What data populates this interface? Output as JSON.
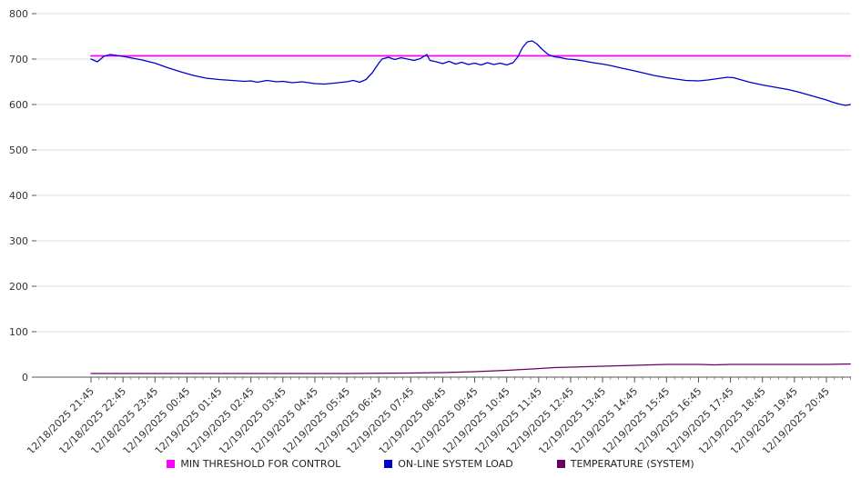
{
  "chart": {
    "background": "#ffffff",
    "axis_color": "#555555",
    "grid_color": "#dddddd",
    "text_color": "#333333"
  },
  "chart_data": {
    "type": "line",
    "title": "",
    "xlabel": "",
    "ylabel": "",
    "ylim": [
      0,
      800
    ],
    "y_step": 100,
    "grid": true,
    "legend_position": "bottom",
    "x_unit": "hours offset from 12/18/2025 21:45, one tick per hour",
    "x_tick_labels": [
      "12/18/2025 21:45",
      "12/18/2025 22:45",
      "12/18/2025 23:45",
      "12/19/2025 00:45",
      "12/19/2025 01:45",
      "12/19/2025 02:45",
      "12/19/2025 03:45",
      "12/19/2025 04:45",
      "12/19/2025 05:45",
      "12/19/2025 06:45",
      "12/19/2025 07:45",
      "12/19/2025 08:45",
      "12/19/2025 09:45",
      "12/19/2025 10:45",
      "12/19/2025 11:45",
      "12/19/2025 12:45",
      "12/19/2025 13:45",
      "12/19/2025 14:45",
      "12/19/2025 15:45",
      "12/19/2025 16:45",
      "12/19/2025 17:45",
      "12/19/2025 18:45",
      "12/19/2025 19:45",
      "12/19/2025 20:45"
    ],
    "series": [
      {
        "name": "MIN THRESHOLD FOR CONTROL",
        "color": "#ff00ff",
        "width": 1.8,
        "points": [
          [
            0,
            707
          ],
          [
            23.75,
            707
          ]
        ]
      },
      {
        "name": "ON-LINE SYSTEM LOAD",
        "color": "#0000cc",
        "width": 1.3,
        "points": [
          [
            0,
            700
          ],
          [
            0.2,
            694
          ],
          [
            0.4,
            706
          ],
          [
            0.6,
            710
          ],
          [
            0.8,
            708
          ],
          [
            1,
            706
          ],
          [
            1.3,
            702
          ],
          [
            1.6,
            698
          ],
          [
            2,
            691
          ],
          [
            2.4,
            681
          ],
          [
            2.8,
            672
          ],
          [
            3.2,
            664
          ],
          [
            3.6,
            658
          ],
          [
            4,
            655
          ],
          [
            4.4,
            653
          ],
          [
            4.8,
            651
          ],
          [
            5,
            652
          ],
          [
            5.2,
            649
          ],
          [
            5.5,
            653
          ],
          [
            5.8,
            650
          ],
          [
            6,
            651
          ],
          [
            6.3,
            648
          ],
          [
            6.6,
            650
          ],
          [
            7,
            646
          ],
          [
            7.3,
            645
          ],
          [
            7.6,
            647
          ],
          [
            8,
            650
          ],
          [
            8.2,
            653
          ],
          [
            8.4,
            649
          ],
          [
            8.6,
            655
          ],
          [
            8.8,
            670
          ],
          [
            9,
            691
          ],
          [
            9.1,
            700
          ],
          [
            9.3,
            704
          ],
          [
            9.5,
            699
          ],
          [
            9.7,
            703
          ],
          [
            9.9,
            700
          ],
          [
            10.1,
            697
          ],
          [
            10.3,
            701
          ],
          [
            10.5,
            710
          ],
          [
            10.6,
            697
          ],
          [
            10.8,
            694
          ],
          [
            11,
            690
          ],
          [
            11.2,
            695
          ],
          [
            11.4,
            689
          ],
          [
            11.6,
            693
          ],
          [
            11.8,
            688
          ],
          [
            12,
            691
          ],
          [
            12.2,
            687
          ],
          [
            12.4,
            692
          ],
          [
            12.6,
            688
          ],
          [
            12.8,
            691
          ],
          [
            13,
            687
          ],
          [
            13.2,
            692
          ],
          [
            13.35,
            705
          ],
          [
            13.5,
            726
          ],
          [
            13.65,
            738
          ],
          [
            13.8,
            740
          ],
          [
            13.95,
            733
          ],
          [
            14.1,
            722
          ],
          [
            14.3,
            710
          ],
          [
            14.5,
            705
          ],
          [
            14.7,
            703
          ],
          [
            14.9,
            700
          ],
          [
            15.1,
            699
          ],
          [
            15.4,
            696
          ],
          [
            15.7,
            692
          ],
          [
            16,
            689
          ],
          [
            16.3,
            685
          ],
          [
            16.6,
            680
          ],
          [
            17,
            674
          ],
          [
            17.3,
            669
          ],
          [
            17.6,
            664
          ],
          [
            18,
            659
          ],
          [
            18.3,
            656
          ],
          [
            18.6,
            653
          ],
          [
            19,
            652
          ],
          [
            19.3,
            654
          ],
          [
            19.6,
            657
          ],
          [
            19.9,
            660
          ],
          [
            20.1,
            659
          ],
          [
            20.3,
            655
          ],
          [
            20.6,
            649
          ],
          [
            21,
            643
          ],
          [
            21.4,
            638
          ],
          [
            21.8,
            633
          ],
          [
            22.1,
            628
          ],
          [
            22.4,
            622
          ],
          [
            22.7,
            616
          ],
          [
            23,
            610
          ],
          [
            23.2,
            605
          ],
          [
            23.4,
            601
          ],
          [
            23.6,
            598
          ],
          [
            23.75,
            600
          ]
        ]
      },
      {
        "name": "TEMPERATURE (SYSTEM)",
        "color": "#660066",
        "width": 1.2,
        "points": [
          [
            0,
            8
          ],
          [
            2,
            8
          ],
          [
            4,
            8
          ],
          [
            6,
            8
          ],
          [
            8,
            8
          ],
          [
            10,
            9
          ],
          [
            11,
            10
          ],
          [
            12,
            12
          ],
          [
            13,
            15
          ],
          [
            13.8,
            18
          ],
          [
            14.5,
            21
          ],
          [
            15.5,
            23
          ],
          [
            16.5,
            25
          ],
          [
            17.5,
            27
          ],
          [
            18,
            28
          ],
          [
            19,
            28
          ],
          [
            19.5,
            27
          ],
          [
            20,
            28
          ],
          [
            21,
            28
          ],
          [
            22,
            28
          ],
          [
            23,
            28
          ],
          [
            23.75,
            29
          ]
        ]
      }
    ]
  }
}
